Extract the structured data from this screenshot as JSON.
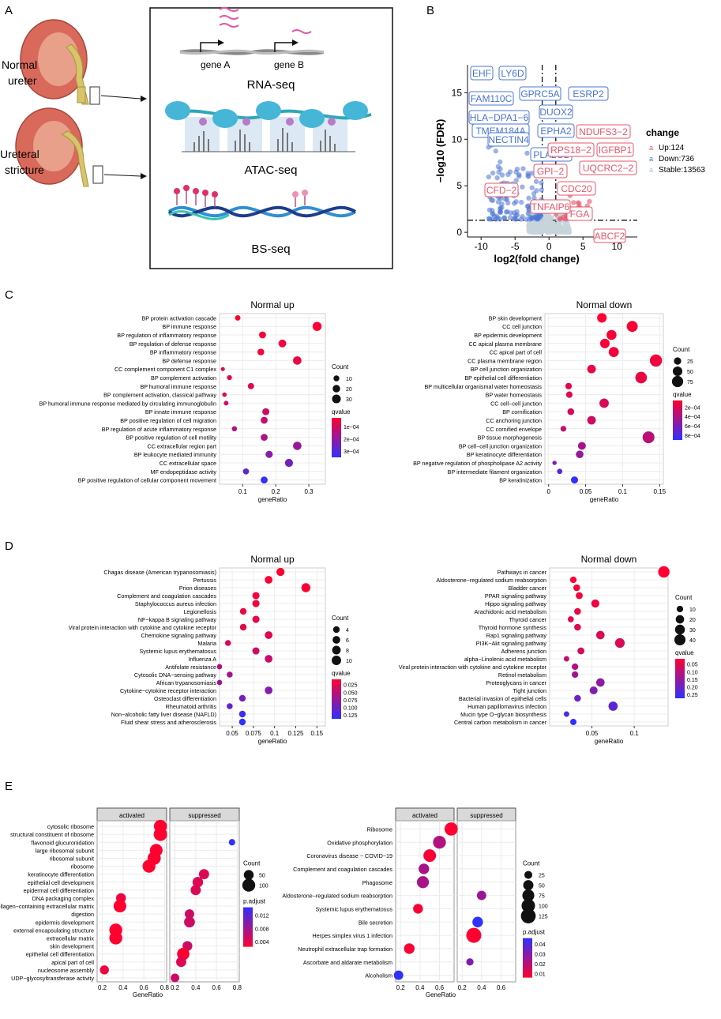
{
  "panels": {
    "a": "A",
    "b": "B",
    "c": "C",
    "d": "D",
    "e": "E"
  },
  "panel_a": {
    "normal_label": [
      "Normal",
      "ureter"
    ],
    "stricture_label": [
      "Ureteral",
      "stricture"
    ],
    "gene_a": "gene A",
    "gene_b": "gene B",
    "rna_seq": "RNA-seq",
    "atac_seq": "ATAC-seq",
    "bs_seq": "BS-seq"
  },
  "colors": {
    "up": "#e8556a",
    "down": "#4a74d6",
    "stable": "#c8d3dc",
    "qhigh": "#ff0030",
    "qlow": "#3030ff"
  },
  "chart_data": [
    {
      "id": "volcano",
      "type": "scatter",
      "xlabel": "log2(fold change)",
      "ylabel": "−log10 (FDR)",
      "xlim": [
        -12,
        13
      ],
      "ylim": [
        -0.5,
        18
      ],
      "xticks": [
        -10,
        -5,
        0,
        5,
        10
      ],
      "yticks": [
        0,
        5,
        10,
        15
      ],
      "legend_title": "change",
      "legend": [
        "Up:124",
        "Down:736",
        "Stable:13563"
      ],
      "labels_down": [
        "EHF",
        "LY6D",
        "FAM110C",
        "GPRC5A",
        "ESRP2",
        "DUOX2",
        "HLA−DPA1−6",
        "TMEM184A",
        "EPHA2",
        "NECTIN4",
        "PLA2G2"
      ],
      "labels_up": [
        "NDUFS3−2",
        "IGFBP1",
        "RPS18−2",
        "UQCRC2−2",
        "GPI−2",
        "CDC20",
        "CFD−2",
        "FGA",
        "TNFAIP6",
        "ABCF2"
      ]
    },
    {
      "id": "c_up",
      "type": "scatter",
      "title": "Normal up",
      "xlabel": "geneRatio",
      "xticks": [
        0.1,
        0.2,
        0.3
      ],
      "xlim": [
        0.03,
        0.35
      ],
      "terms": [
        "BP protein activation cascade",
        "BP immune response",
        "BP regulation of inflammatory response",
        "BP regulation of defense response",
        "BP inflammatory response",
        "BP defense response",
        "CC complement component C1 complex",
        "BP complement activation",
        "BP humoral immune response",
        "BP complement activation, classical pathway",
        "BP humoral immune response mediated by circulating immunoglobulin",
        "BP innate immune response",
        "BP positive regulation of cell migration",
        "BP regulation of acute inflammatory response",
        "BP positive regulation of cell motility",
        "CC extracellular region part",
        "BP leukocyte mediated immunity",
        "CC extracellular space",
        "MF endopeptidase activity",
        "BP positive regulation of cellular component movement"
      ],
      "x": [
        0.085,
        0.325,
        0.16,
        0.22,
        0.155,
        0.265,
        0.04,
        0.06,
        0.125,
        0.045,
        0.05,
        0.17,
        0.165,
        0.075,
        0.165,
        0.265,
        0.18,
        0.24,
        0.11,
        0.165
      ],
      "count": [
        8,
        32,
        16,
        22,
        15,
        27,
        3,
        6,
        12,
        4,
        5,
        17,
        16,
        7,
        16,
        27,
        18,
        24,
        11,
        16
      ],
      "qvalue": [
        2e-05,
        2e-05,
        3e-05,
        4e-05,
        4e-05,
        5e-05,
        6e-05,
        7e-05,
        8e-05,
        9e-05,
        0.0001,
        0.00011,
        0.00013,
        0.00015,
        0.00017,
        0.0002,
        0.00023,
        0.00026,
        0.0003,
        0.00038
      ],
      "size_legend_title": "Count",
      "size_legend": [
        10,
        20,
        30
      ],
      "color_legend_title": "qvalue",
      "color_ticks": [
        "1e−04",
        "2e−04",
        "3e−04"
      ]
    },
    {
      "id": "c_down",
      "type": "scatter",
      "title": "Normal down",
      "xlabel": "geneRatio",
      "xticks": [
        0.0,
        0.05,
        0.1,
        0.15
      ],
      "xlim": [
        -0.005,
        0.155
      ],
      "terms": [
        "BP skin development",
        "CC cell junction",
        "BP epidermis development",
        "CC apical plasma membrane",
        "CC apical part of cell",
        "CC plasma membrane region",
        "BP cell junction organization",
        "BP epithelial cell differentiation",
        "BP multicellular organismal water homeostasis",
        "BP water homeostasis",
        "CC cell−cell junction",
        "BP cornification",
        "CC anchoring junction",
        "CC cornified envelope",
        "BP tissue morphogenesis",
        "BP cell−cell junction organization",
        "BP keratinocyte differentiation",
        "BP negative regulation of phospholipase A2 activity",
        "BP intermediate filament organization",
        "BP keratinization"
      ],
      "x": [
        0.072,
        0.113,
        0.085,
        0.076,
        0.088,
        0.145,
        0.058,
        0.125,
        0.027,
        0.028,
        0.075,
        0.03,
        0.058,
        0.02,
        0.135,
        0.045,
        0.042,
        0.008,
        0.015,
        0.035
      ],
      "count": [
        50,
        70,
        55,
        50,
        57,
        90,
        38,
        80,
        18,
        18,
        48,
        20,
        38,
        13,
        85,
        30,
        28,
        5,
        10,
        23
      ],
      "qvalue": [
        2e-05,
        3e-05,
        4e-05,
        5e-05,
        6e-05,
        7e-05,
        9e-05,
        0.0001,
        0.00012,
        0.00014,
        0.00016,
        0.00018,
        0.0002,
        0.00024,
        0.00028,
        0.00035,
        0.00042,
        0.0005,
        0.00065,
        0.0008
      ],
      "size_legend_title": "Count",
      "size_legend": [
        25,
        50,
        75
      ],
      "color_legend_title": "qvalue",
      "color_ticks": [
        "2e−04",
        "4e−04",
        "6e−04",
        "8e−04"
      ]
    },
    {
      "id": "d_up",
      "type": "scatter",
      "title": "Normal up",
      "xlabel": "geneRatio",
      "xticks": [
        0.05,
        0.075,
        0.1,
        0.125,
        0.15
      ],
      "xlim": [
        0.035,
        0.16
      ],
      "terms": [
        "Chagas disease (American trypanosomiasis)",
        "Pertussis",
        "Prion diseases",
        "Complement and coagulation cascades",
        "Staphylococcus aureus infection",
        "Legionellosis",
        "NF−kappa B signaling pathway",
        "Viral protein interaction with cytokine and cytokine receptor",
        "Chemokine signaling pathway",
        "Malaria",
        "Systemic lupus erythematosus",
        "Influenza A",
        "Antifolate resistance",
        "Cytosolic DNA−sensing pathway",
        "African trypanosomiasis",
        "Cytokine−cytokine receptor interaction",
        "Osteoclast differentiation",
        "Rheumatoid arthritis",
        "Non−alcoholic fatty liver disease (NAFLD)",
        "Fluid shear stress and atherosclerosis"
      ],
      "x": [
        0.107,
        0.093,
        0.137,
        0.078,
        0.078,
        0.063,
        0.078,
        0.063,
        0.093,
        0.045,
        0.078,
        0.093,
        0.035,
        0.047,
        0.035,
        0.093,
        0.062,
        0.047,
        0.062,
        0.062
      ],
      "count": [
        7,
        6,
        9,
        5,
        5,
        4,
        5,
        4,
        6,
        3,
        5,
        6,
        2,
        3,
        2,
        6,
        4,
        3,
        4,
        4
      ],
      "qvalue": [
        0.005,
        0.006,
        0.007,
        0.01,
        0.012,
        0.015,
        0.018,
        0.02,
        0.025,
        0.03,
        0.035,
        0.04,
        0.05,
        0.06,
        0.07,
        0.08,
        0.09,
        0.1,
        0.12,
        0.13
      ],
      "size_legend_title": "Count",
      "size_legend": [
        4,
        6,
        8,
        10
      ],
      "color_legend_title": "qvalue",
      "color_ticks": [
        "0.025",
        "0.050",
        "0.075",
        "0.100",
        "0.125"
      ]
    },
    {
      "id": "d_down",
      "type": "scatter",
      "title": "Normal down",
      "xlabel": "geneRatio",
      "xticks": [
        0.05,
        0.1
      ],
      "xlim": [
        0.0,
        0.14
      ],
      "terms": [
        "Pathways in cancer",
        "Aldosterone−regulated sodium reabsorption",
        "Bladder cancer",
        "PPAR signaling pathway",
        "Hippo signaling pathway",
        "Arachidonic acid metabolism",
        "Thyroid cancer",
        "Thyroid hormone synthesis",
        "Rap1 signaling pathway",
        "PI3K−Akt signaling pathway",
        "Adherens junction",
        "alpha−Linolenic acid metabolism",
        "Viral protein interaction with cytokine and cytokine receptor",
        "Retinol metabolism",
        "Proteoglycans in cancer",
        "Tight junction",
        "Bacterial invasion of epithelial cells",
        "Human papillomavirus infection",
        "Mucin type O−glycan biosynthesis",
        "Central carbon metabolism in cancer"
      ],
      "x": [
        0.135,
        0.028,
        0.032,
        0.035,
        0.054,
        0.033,
        0.025,
        0.033,
        0.06,
        0.083,
        0.037,
        0.02,
        0.03,
        0.03,
        0.06,
        0.052,
        0.033,
        0.075,
        0.02,
        0.028
      ],
      "count": [
        42,
        10,
        11,
        12,
        18,
        11,
        8,
        11,
        20,
        28,
        12,
        6,
        10,
        10,
        20,
        17,
        11,
        25,
        6,
        9
      ],
      "qvalue": [
        0.01,
        0.015,
        0.02,
        0.025,
        0.03,
        0.035,
        0.04,
        0.045,
        0.05,
        0.055,
        0.06,
        0.08,
        0.1,
        0.12,
        0.14,
        0.16,
        0.18,
        0.2,
        0.22,
        0.25
      ],
      "size_legend_title": "Count",
      "size_legend": [
        10,
        20,
        30,
        40
      ],
      "color_legend_title": "qvalue",
      "color_ticks": [
        "0.05",
        "0.10",
        "0.15",
        "0.20",
        "0.25"
      ]
    },
    {
      "id": "e_left",
      "type": "scatter",
      "xlabel": "GeneRatio",
      "facets": [
        "activated",
        "suppressed"
      ],
      "xticks": [
        0.2,
        0.4,
        0.6,
        0.8
      ],
      "xlim": [
        0.15,
        0.82
      ],
      "terms": [
        "cytosolic ribosome",
        "structural constituent of ribosome",
        "flavonoid glucuronidation",
        "large ribosomal subunit",
        "ribosomal subunit",
        "ribosome",
        "keratinocyte differentiation",
        "epithelial cell development",
        "epidermal cell differentiation",
        "DNA packaging complex",
        "collagen−containing extracellular matrix",
        "digestion",
        "epidermis development",
        "external encapsulating structure",
        "extracellular matrix",
        "skin development",
        "epithelial cell differentiation",
        "apical part of cell",
        "nucleosome assembly",
        "UDP−glycosyltransferase activity"
      ],
      "facet_of": [
        0,
        0,
        1,
        0,
        0,
        0,
        1,
        1,
        1,
        0,
        0,
        1,
        1,
        0,
        0,
        1,
        1,
        1,
        0,
        1
      ],
      "x": [
        0.76,
        0.76,
        0.75,
        0.72,
        0.7,
        0.65,
        0.48,
        0.42,
        0.4,
        0.38,
        0.37,
        0.34,
        0.34,
        0.33,
        0.33,
        0.32,
        0.28,
        0.26,
        0.22,
        0.2
      ],
      "count": [
        100,
        110,
        15,
        95,
        105,
        100,
        55,
        60,
        55,
        50,
        95,
        45,
        65,
        100,
        100,
        50,
        90,
        55,
        40,
        35
      ],
      "padjust": [
        0.001,
        0.001,
        0.013,
        0.001,
        0.001,
        0.001,
        0.003,
        0.003,
        0.003,
        0.002,
        0.001,
        0.004,
        0.004,
        0.001,
        0.001,
        0.004,
        0.001,
        0.003,
        0.002,
        0.004
      ],
      "size_legend_title": "Count",
      "size_legend": [
        50,
        100
      ],
      "color_legend_title": "p.adjust",
      "color_ticks": [
        "0.012",
        "0.008",
        "0.004"
      ]
    },
    {
      "id": "e_right",
      "type": "scatter",
      "xlabel": "GeneRatio",
      "facets": [
        "activated",
        "suppressed"
      ],
      "xticks": [
        0.2,
        0.4,
        0.6
      ],
      "xlim": [
        0.15,
        0.75
      ],
      "terms": [
        "Ribosome",
        "Oxidative phosphorylation",
        "Coronavirus disease − COVID−19",
        "Complement and coagulation cascades",
        "Phagosome",
        "Aldosterone−regulated sodium reabsorption",
        "Systemic lupus erythematosus",
        "Bile secretion",
        "Herpes simplex virus 1 infection",
        "Neutrophil extracellular trap formation",
        "Ascorbate and aldarate metabolism",
        "Alcoholism"
      ],
      "facet_of": [
        0,
        0,
        0,
        0,
        0,
        1,
        0,
        1,
        1,
        0,
        1,
        0
      ],
      "x": [
        0.72,
        0.6,
        0.5,
        0.44,
        0.43,
        0.4,
        0.38,
        0.36,
        0.32,
        0.29,
        0.28,
        0.18
      ],
      "count": [
        95,
        90,
        85,
        55,
        75,
        40,
        45,
        55,
        130,
        55,
        20,
        40
      ],
      "padjust": [
        0.005,
        0.02,
        0.006,
        0.022,
        0.022,
        0.025,
        0.006,
        0.045,
        0.005,
        0.006,
        0.03,
        0.045
      ],
      "size_legend_title": "Count",
      "size_legend": [
        25,
        50,
        75,
        100,
        125
      ],
      "color_legend_title": "p.adjust",
      "color_ticks": [
        "0.04",
        "0.03",
        "0.02",
        "0.01"
      ]
    }
  ]
}
